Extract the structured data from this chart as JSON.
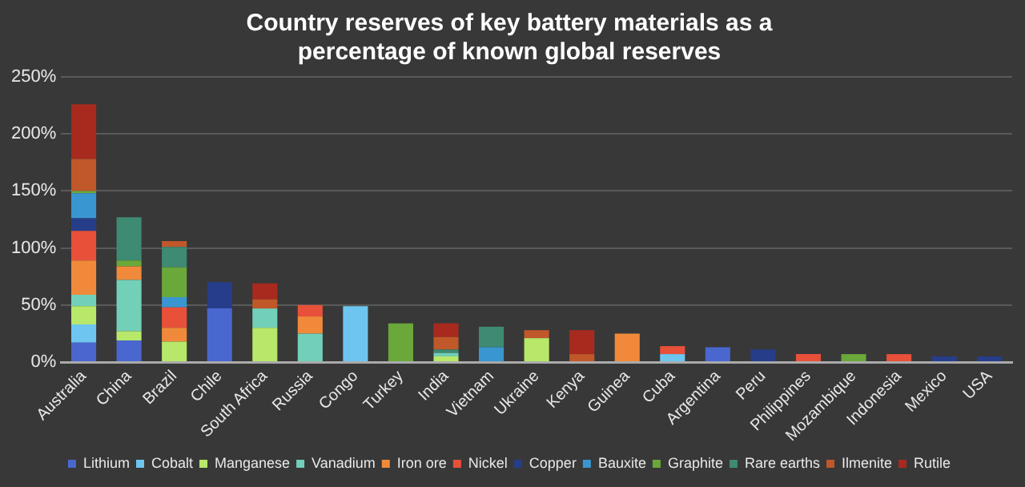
{
  "chart_data": {
    "type": "bar",
    "title": "Country reserves of key battery materials as a percentage of known global reserves",
    "categories": [
      "Australia",
      "China",
      "Brazil",
      "Chile",
      "South Africa",
      "Russia",
      "Congo",
      "Turkey",
      "India",
      "Vietnam",
      "Ukraine",
      "Kenya",
      "Guinea",
      "Cuba",
      "Argentina",
      "Peru",
      "Philippines",
      "Mozambique",
      "Indonesia",
      "Mexico",
      "USA"
    ],
    "stacked": true,
    "series": [
      {
        "name": "Lithium",
        "color": "#4a67d0",
        "values": [
          17,
          19,
          null,
          47,
          null,
          null,
          null,
          null,
          null,
          null,
          null,
          null,
          null,
          null,
          13,
          null,
          null,
          null,
          null,
          null,
          null
        ]
      },
      {
        "name": "Cobalt",
        "color": "#6ec6f0",
        "values": [
          16,
          null,
          null,
          null,
          null,
          null,
          49,
          null,
          null,
          null,
          null,
          null,
          null,
          7,
          null,
          null,
          null,
          null,
          null,
          null,
          null
        ]
      },
      {
        "name": "Manganese",
        "color": "#b8e86a",
        "values": [
          16,
          8,
          18,
          null,
          30,
          null,
          null,
          null,
          5,
          null,
          21,
          null,
          null,
          null,
          null,
          null,
          null,
          null,
          null,
          null,
          null
        ]
      },
      {
        "name": "Vanadium",
        "color": "#72d0b8",
        "values": [
          10,
          45,
          null,
          null,
          17,
          25,
          null,
          null,
          3,
          null,
          null,
          null,
          null,
          null,
          null,
          null,
          null,
          null,
          null,
          null,
          null
        ]
      },
      {
        "name": "Iron ore",
        "color": "#f08a3a",
        "values": [
          30,
          12,
          12,
          null,
          null,
          15,
          null,
          null,
          null,
          null,
          null,
          null,
          25,
          null,
          null,
          null,
          null,
          null,
          null,
          null,
          null
        ]
      },
      {
        "name": "Nickel",
        "color": "#e8503a",
        "values": [
          26,
          null,
          18,
          null,
          null,
          10,
          null,
          null,
          null,
          null,
          null,
          null,
          null,
          7,
          null,
          null,
          7,
          null,
          7,
          null,
          null
        ]
      },
      {
        "name": "Copper",
        "color": "#263e8a",
        "values": [
          11,
          null,
          null,
          23,
          null,
          null,
          null,
          null,
          null,
          null,
          null,
          null,
          null,
          null,
          null,
          11,
          null,
          null,
          null,
          5,
          5
        ]
      },
      {
        "name": "Bauxite",
        "color": "#3a96d0",
        "values": [
          22,
          null,
          9,
          null,
          null,
          null,
          null,
          null,
          null,
          13,
          null,
          null,
          null,
          null,
          null,
          null,
          null,
          null,
          null,
          null,
          null
        ]
      },
      {
        "name": "Graphite",
        "color": "#6aa83a",
        "values": [
          2,
          5,
          26,
          null,
          null,
          null,
          null,
          34,
          null,
          null,
          null,
          null,
          null,
          null,
          null,
          null,
          null,
          7,
          null,
          null,
          null
        ]
      },
      {
        "name": "Rare earths",
        "color": "#3e8a72",
        "values": [
          null,
          38,
          18,
          null,
          null,
          null,
          null,
          null,
          3,
          18,
          null,
          null,
          null,
          null,
          null,
          null,
          null,
          null,
          null,
          null,
          null
        ]
      },
      {
        "name": "Ilmenite",
        "color": "#c0582a",
        "values": [
          28,
          null,
          5,
          null,
          8,
          null,
          null,
          null,
          11,
          null,
          7,
          7,
          null,
          null,
          null,
          null,
          null,
          null,
          null,
          null,
          null
        ]
      },
      {
        "name": "Rutile",
        "color": "#a82a1e",
        "values": [
          48,
          null,
          null,
          null,
          14,
          null,
          null,
          null,
          12,
          null,
          null,
          21,
          null,
          null,
          null,
          null,
          null,
          null,
          null,
          null,
          null
        ]
      }
    ],
    "ylim": [
      0,
      250
    ],
    "yticks": [
      {
        "value": 0,
        "label": "0%"
      },
      {
        "value": 50,
        "label": "50%"
      },
      {
        "value": 100,
        "label": "100%"
      },
      {
        "value": 150,
        "label": "150%"
      },
      {
        "value": 200,
        "label": "200%"
      },
      {
        "value": 250,
        "label": "250%"
      }
    ],
    "grid": "y",
    "legend": "bottom"
  }
}
